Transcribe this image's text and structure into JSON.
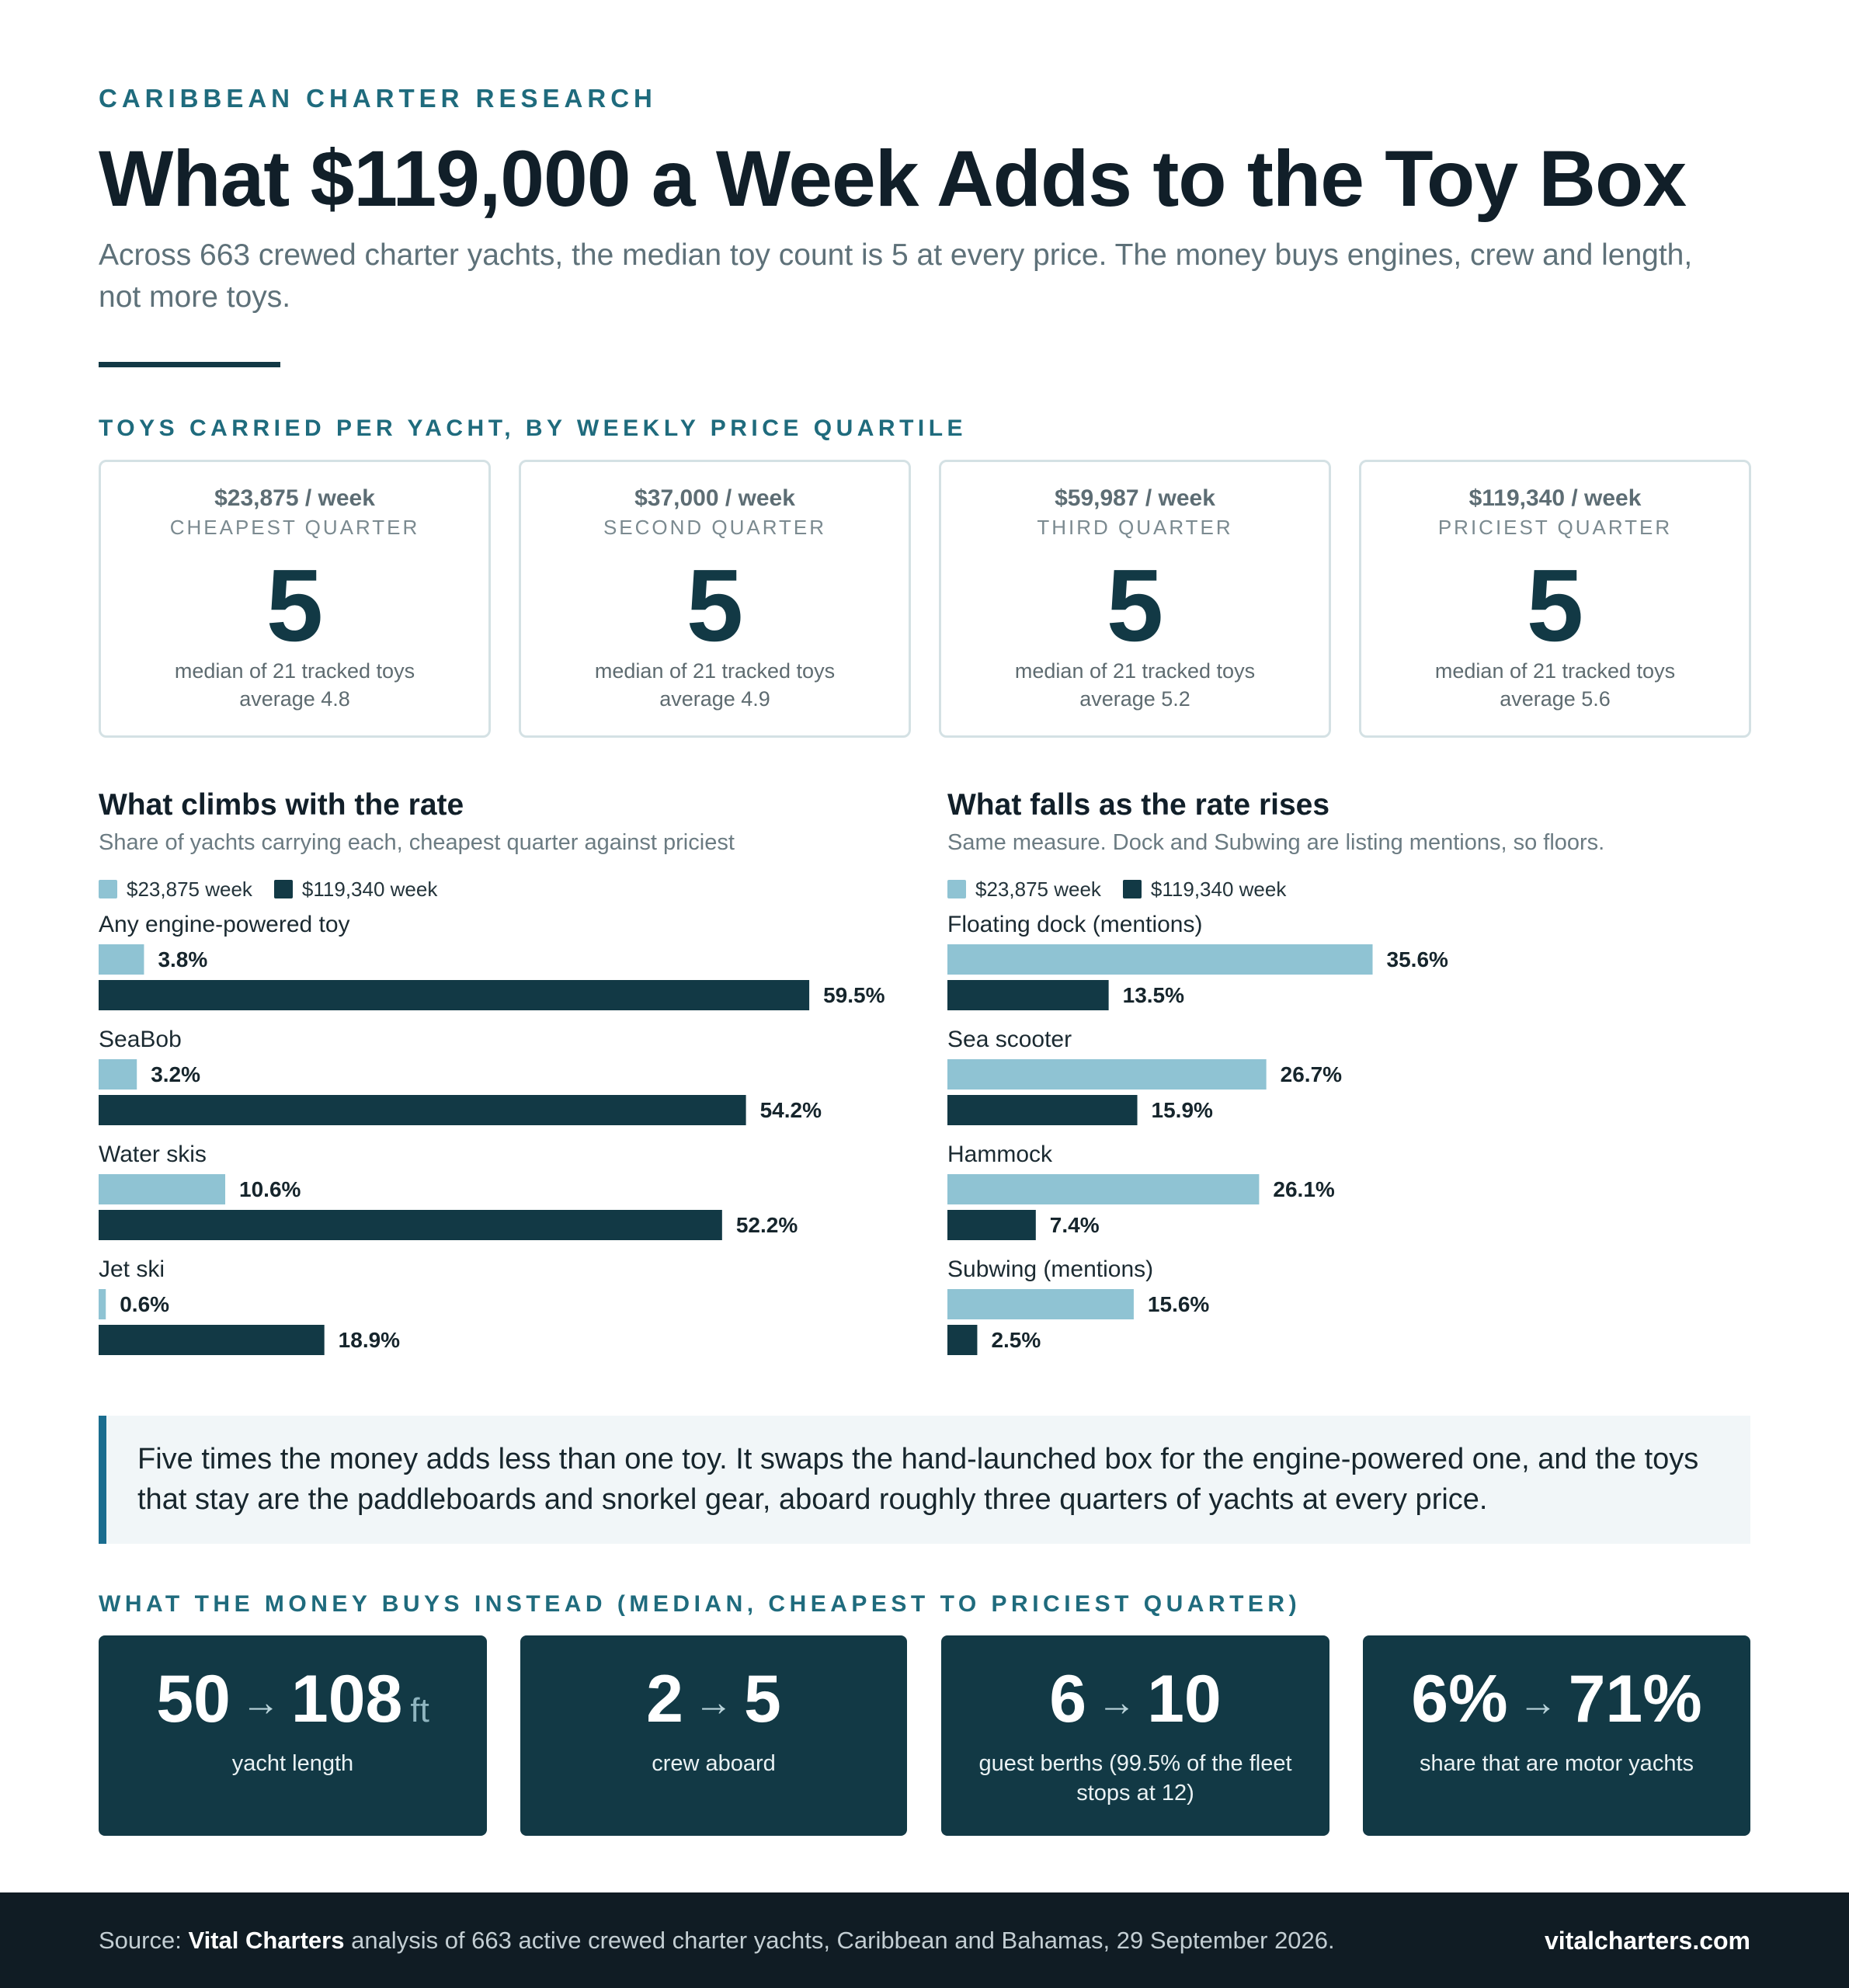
{
  "kicker": "CARIBBEAN CHARTER RESEARCH",
  "title": "What $119,000 a Week Adds to the Toy Box",
  "subtitle": "Across 663 crewed charter yachts, the median toy count is 5 at every price. The money buys engines, crew and length, not more toys.",
  "quartiles_heading": "TOYS CARRIED PER YACHT, BY WEEKLY PRICE QUARTILE",
  "quartiles": [
    {
      "price": "$23,875 / week",
      "name": "CHEAPEST QUARTER",
      "median": "5",
      "desc": "median of 21 tracked toys",
      "avg": "average 4.8"
    },
    {
      "price": "$37,000 / week",
      "name": "SECOND QUARTER",
      "median": "5",
      "desc": "median of 21 tracked toys",
      "avg": "average 4.9"
    },
    {
      "price": "$59,987 / week",
      "name": "THIRD QUARTER",
      "median": "5",
      "desc": "median of 21 tracked toys",
      "avg": "average 5.2"
    },
    {
      "price": "$119,340 / week",
      "name": "PRICIEST QUARTER",
      "median": "5",
      "desc": "median of 21 tracked toys",
      "avg": "average 5.6"
    }
  ],
  "colors": {
    "cheap": "#8fc3d3",
    "priciest": "#123945",
    "accent": "#1f6b7d"
  },
  "chart_data": [
    {
      "type": "bar",
      "title": "What climbs with the rate",
      "subtitle": "Share of yachts carrying each, cheapest quarter against priciest",
      "categories": [
        "Any engine-powered toy",
        "SeaBob",
        "Water skis",
        "Jet ski"
      ],
      "series": [
        {
          "name": "$23,875 week",
          "values": [
            3.8,
            3.2,
            10.6,
            0.6
          ]
        },
        {
          "name": "$119,340 week",
          "values": [
            59.5,
            54.2,
            52.2,
            18.9
          ]
        }
      ],
      "unit": "%",
      "xlim": [
        0,
        100
      ]
    },
    {
      "type": "bar",
      "title": "What falls as the rate rises",
      "subtitle": "Same measure. Dock and Subwing are listing mentions, so floors.",
      "categories": [
        "Floating dock (mentions)",
        "Sea scooter",
        "Hammock",
        "Subwing (mentions)"
      ],
      "series": [
        {
          "name": "$23,875 week",
          "values": [
            35.6,
            26.7,
            26.1,
            15.6
          ]
        },
        {
          "name": "$119,340 week",
          "values": [
            13.5,
            15.9,
            7.4,
            2.5
          ]
        }
      ],
      "unit": "%",
      "xlim": [
        0,
        100
      ]
    }
  ],
  "callout": "Five times the money adds less than one toy. It swaps the hand-launched box for the engine-powered one, and the toys that stay are the paddleboards and snorkel gear, aboard roughly three quarters of yachts at every price.",
  "stats_heading": "WHAT THE MONEY BUYS INSTEAD (MEDIAN, CHEAPEST TO PRICIEST QUARTER)",
  "stats": [
    {
      "from": "50",
      "to": "108",
      "unit": "ft",
      "label": "yacht length"
    },
    {
      "from": "2",
      "to": "5",
      "unit": "",
      "label": "crew aboard"
    },
    {
      "from": "6",
      "to": "10",
      "unit": "",
      "label": "guest berths (99.5% of the fleet stops at 12)"
    },
    {
      "from": "6%",
      "to": "71%",
      "unit": "",
      "label": "share that are motor yachts"
    }
  ],
  "arrow": "→",
  "footer": {
    "prefix": "Source: ",
    "org": "Vital Charters",
    "rest": " analysis of 663 active crewed charter yachts, Caribbean and Bahamas, 29 September 2026.",
    "site": "vitalcharters.com"
  }
}
